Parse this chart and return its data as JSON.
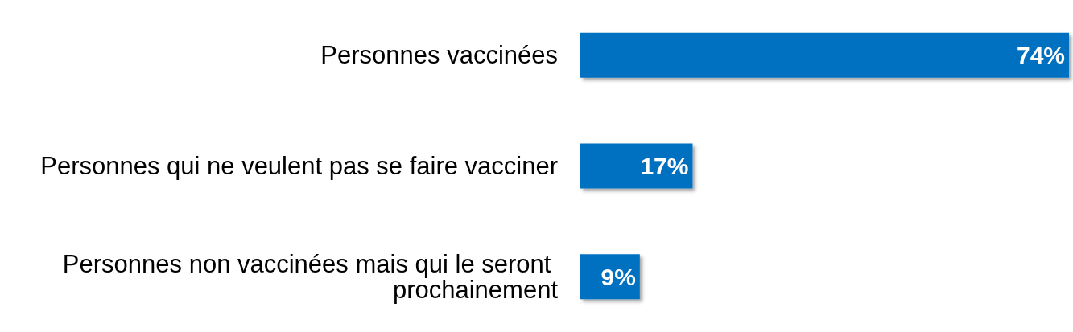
{
  "chart_data": {
    "type": "bar",
    "orientation": "horizontal",
    "categories": [
      "Personnes vaccinées",
      "Personnes qui ne veulent pas se faire vacciner",
      "Personnes non vaccinées mais qui le seront prochainement"
    ],
    "values": [
      74,
      17,
      9
    ],
    "value_labels": [
      "74%",
      "17%",
      "9%"
    ],
    "color": "#0070c0"
  }
}
